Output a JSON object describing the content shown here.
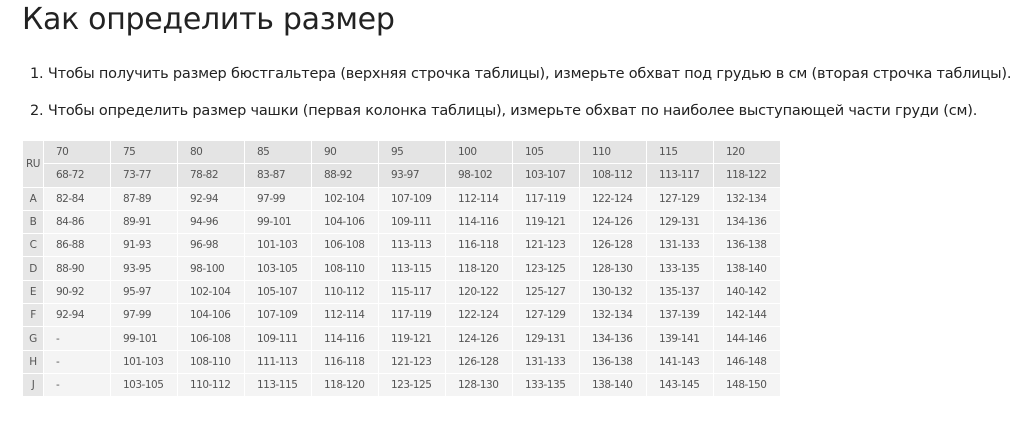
{
  "title": "Как определить размер",
  "instructions": [
    "1. Чтобы получить размер бюстгальтера (верхняя строчка таблицы), измерьте обхват под грудью в см (вторая строчка таблицы).",
    "2. Чтобы определить размер чашки (первая колонка таблицы), измерьте обхват по наиболее выступающей части груди (см)."
  ],
  "table": {
    "corner": "RU",
    "sizes": [
      "70",
      "75",
      "80",
      "85",
      "90",
      "95",
      "100",
      "105",
      "110",
      "115",
      "120"
    ],
    "underbust": [
      "68-72",
      "73-77",
      "78-82",
      "83-87",
      "88-92",
      "93-97",
      "98-102",
      "103-107",
      "108-112",
      "113-117",
      "118-122"
    ],
    "rows": [
      {
        "cup": "A",
        "values": [
          "82-84",
          "87-89",
          "92-94",
          "97-99",
          "102-104",
          "107-109",
          "112-114",
          "117-119",
          "122-124",
          "127-129",
          "132-134"
        ]
      },
      {
        "cup": "B",
        "values": [
          "84-86",
          "89-91",
          "94-96",
          "99-101",
          "104-106",
          "109-111",
          "114-116",
          "119-121",
          "124-126",
          "129-131",
          "134-136"
        ]
      },
      {
        "cup": "C",
        "values": [
          "86-88",
          "91-93",
          "96-98",
          "101-103",
          "106-108",
          "113-113",
          "116-118",
          "121-123",
          "126-128",
          "131-133",
          "136-138"
        ]
      },
      {
        "cup": "D",
        "values": [
          "88-90",
          "93-95",
          "98-100",
          "103-105",
          "108-110",
          "113-115",
          "118-120",
          "123-125",
          "128-130",
          "133-135",
          "138-140"
        ]
      },
      {
        "cup": "E",
        "values": [
          "90-92",
          "95-97",
          "102-104",
          "105-107",
          "110-112",
          "115-117",
          "120-122",
          "125-127",
          "130-132",
          "135-137",
          "140-142"
        ]
      },
      {
        "cup": "F",
        "values": [
          "92-94",
          "97-99",
          "104-106",
          "107-109",
          "112-114",
          "117-119",
          "122-124",
          "127-129",
          "132-134",
          "137-139",
          "142-144"
        ]
      },
      {
        "cup": "G",
        "values": [
          "-",
          "99-101",
          "106-108",
          "109-111",
          "114-116",
          "119-121",
          "124-126",
          "129-131",
          "134-136",
          "139-141",
          "144-146"
        ]
      },
      {
        "cup": "H",
        "values": [
          "-",
          "101-103",
          "108-110",
          "111-113",
          "116-118",
          "121-123",
          "126-128",
          "131-133",
          "136-138",
          "141-143",
          "146-148"
        ]
      },
      {
        "cup": "J",
        "values": [
          "-",
          "103-105",
          "110-112",
          "113-115",
          "118-120",
          "123-125",
          "128-130",
          "133-135",
          "138-140",
          "143-145",
          "148-150"
        ]
      }
    ]
  }
}
